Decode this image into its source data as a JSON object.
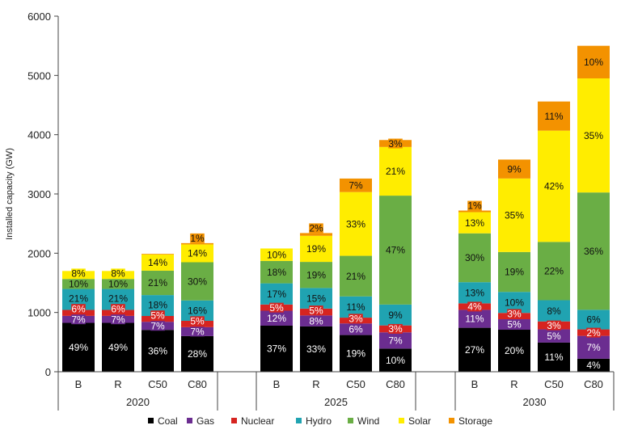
{
  "chart_data": {
    "type": "bar",
    "stacked": true,
    "ylabel": "Installed capacity (GW)",
    "ylim": [
      0,
      6000
    ],
    "yticks": [
      0,
      1000,
      2000,
      3000,
      4000,
      5000,
      6000
    ],
    "grid": false,
    "legend_position": "bottom",
    "groups": [
      {
        "label": "2020",
        "categories": [
          "B",
          "R",
          "C50",
          "C80"
        ],
        "totals": [
          1700,
          1700,
          1980,
          2170
        ]
      },
      {
        "label": "2025",
        "categories": [
          "B",
          "R",
          "C50",
          "C80"
        ],
        "totals": [
          2080,
          2340,
          3260,
          3910
        ]
      },
      {
        "label": "2030",
        "categories": [
          "B",
          "R",
          "C50",
          "C80"
        ],
        "totals": [
          2720,
          3580,
          4560,
          5500
        ]
      }
    ],
    "series": [
      {
        "name": "Coal",
        "color": "#000000",
        "label_color": "#ffffff",
        "percent": [
          [
            49,
            49,
            36,
            28
          ],
          [
            37,
            33,
            19,
            10
          ],
          [
            27,
            20,
            11,
            4
          ]
        ]
      },
      {
        "name": "Gas",
        "color": "#6b2d90",
        "label_color": "#ffffff",
        "percent": [
          [
            7,
            7,
            7,
            7
          ],
          [
            12,
            8,
            6,
            7
          ],
          [
            11,
            5,
            5,
            7
          ]
        ]
      },
      {
        "name": "Nuclear",
        "color": "#d62420",
        "label_color": "#ffffff",
        "percent": [
          [
            6,
            6,
            5,
            5
          ],
          [
            5,
            5,
            3,
            3
          ],
          [
            4,
            3,
            3,
            2
          ]
        ]
      },
      {
        "name": "Hydro",
        "color": "#20a3b1",
        "label_color": "#111111",
        "percent": [
          [
            21,
            21,
            18,
            16
          ],
          [
            17,
            15,
            11,
            9
          ],
          [
            13,
            10,
            8,
            6
          ]
        ]
      },
      {
        "name": "Wind",
        "color": "#6aae45",
        "label_color": "#111111",
        "percent": [
          [
            10,
            10,
            21,
            30
          ],
          [
            18,
            19,
            21,
            47
          ],
          [
            30,
            19,
            22,
            36
          ]
        ]
      },
      {
        "name": "Solar",
        "color": "#ffed00",
        "label_color": "#111111",
        "percent": [
          [
            8,
            8,
            14,
            14
          ],
          [
            10,
            19,
            33,
            21
          ],
          [
            13,
            35,
            42,
            35
          ]
        ]
      },
      {
        "name": "Storage",
        "color": "#f39200",
        "label_color": "#111111",
        "percent": [
          [
            0,
            0,
            0,
            1
          ],
          [
            0,
            2,
            7,
            3
          ],
          [
            1,
            9,
            11,
            10
          ]
        ]
      }
    ]
  }
}
